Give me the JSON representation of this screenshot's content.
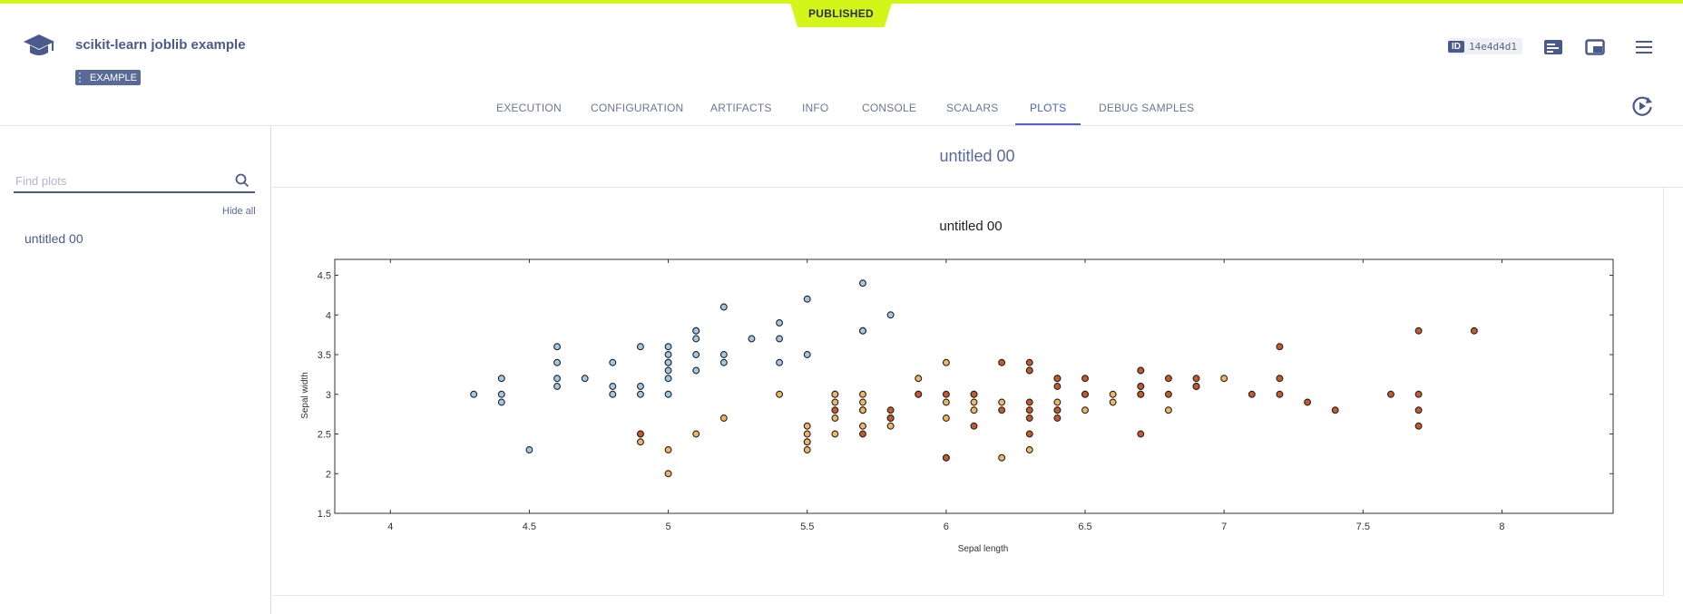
{
  "status_label": "PUBLISHED",
  "task": {
    "title": "scikit-learn joblib example",
    "badge": "EXAMPLE",
    "id_label": "ID",
    "id_value": "14e4d4d1"
  },
  "tabs": [
    {
      "label": "EXECUTION",
      "active": false
    },
    {
      "label": "CONFIGURATION",
      "active": false
    },
    {
      "label": "ARTIFACTS",
      "active": false
    },
    {
      "label": "INFO",
      "active": false
    },
    {
      "label": "CONSOLE",
      "active": false
    },
    {
      "label": "SCALARS",
      "active": false
    },
    {
      "label": "PLOTS",
      "active": true
    },
    {
      "label": "DEBUG SAMPLES",
      "active": false
    }
  ],
  "sidebar": {
    "search_placeholder": "Find plots",
    "hide_all_label": "Hide all",
    "plots": [
      "untitled 00"
    ]
  },
  "main": {
    "section_title": "untitled 00"
  },
  "colors": {
    "accent": "#d3f51a",
    "brand": "#4b5a8c",
    "active_tab": "#4b63c4",
    "class_0": "#9fc9e6",
    "class_1": "#f2b562",
    "class_2": "#c85a2a"
  },
  "icons": {
    "logo": "graduation-cap-icon",
    "details": "details-panel-icon",
    "split_view": "split-view-icon",
    "menu": "hamburger-menu-icon",
    "refresh": "refresh-play-icon",
    "search": "search-icon"
  },
  "chart_data": {
    "type": "scatter",
    "title": "untitled 00",
    "xlabel": "Sepal length",
    "ylabel": "Sepal width",
    "xlim": [
      3.8,
      8.4
    ],
    "ylim": [
      1.5,
      4.7
    ],
    "xticks": [
      4,
      4.5,
      5,
      5.5,
      6,
      6.5,
      7,
      7.5,
      8
    ],
    "yticks": [
      1.5,
      2,
      2.5,
      3,
      3.5,
      4,
      4.5
    ],
    "grid": false,
    "series": [
      {
        "color": "#9fc9e6",
        "x": [
          4.3,
          4.4,
          4.4,
          4.4,
          4.5,
          4.6,
          4.6,
          4.6,
          4.6,
          4.7,
          4.8,
          4.8,
          4.8,
          4.9,
          4.9,
          4.9,
          5.0,
          5.0,
          5.0,
          5.0,
          5.0,
          5.0,
          5.0,
          5.1,
          5.1,
          5.1,
          5.1,
          5.1,
          5.2,
          5.2,
          5.2,
          5.3,
          5.4,
          5.4,
          5.4,
          5.5,
          5.5,
          5.7,
          5.7,
          5.7,
          5.8
        ],
        "y": [
          3.0,
          3.2,
          3.0,
          2.9,
          2.3,
          3.6,
          3.4,
          3.2,
          3.1,
          3.2,
          3.4,
          3.1,
          3.0,
          3.6,
          3.1,
          3.0,
          3.6,
          3.5,
          3.4,
          3.3,
          3.2,
          3.0,
          3.4,
          3.8,
          3.7,
          3.5,
          3.3,
          3.8,
          4.1,
          3.5,
          3.4,
          3.7,
          3.9,
          3.7,
          3.4,
          4.2,
          3.5,
          4.4,
          3.8,
          3.8,
          4.0
        ]
      },
      {
        "color": "#f2b562",
        "x": [
          4.9,
          4.9,
          5.0,
          5.0,
          5.1,
          5.2,
          5.4,
          5.5,
          5.5,
          5.5,
          5.5,
          5.5,
          5.6,
          5.6,
          5.6,
          5.6,
          5.6,
          5.7,
          5.7,
          5.7,
          5.7,
          5.7,
          5.8,
          5.8,
          5.9,
          5.9,
          6.0,
          6.0,
          6.0,
          6.0,
          6.1,
          6.1,
          6.1,
          6.2,
          6.2,
          6.3,
          6.3,
          6.4,
          6.4,
          6.5,
          6.6,
          6.6,
          6.7,
          6.7,
          6.8,
          6.9,
          7.0
        ],
        "y": [
          2.4,
          2.5,
          2.3,
          2.0,
          2.5,
          2.7,
          3.0,
          2.6,
          2.5,
          2.4,
          2.4,
          2.3,
          3.0,
          2.9,
          2.7,
          2.5,
          3.0,
          3.0,
          2.9,
          2.8,
          2.6,
          2.8,
          2.7,
          2.6,
          3.2,
          3.0,
          3.4,
          2.9,
          2.7,
          2.2,
          3.0,
          2.9,
          2.8,
          2.9,
          2.2,
          3.3,
          2.3,
          3.2,
          2.9,
          2.8,
          3.0,
          2.9,
          3.1,
          3.0,
          2.8,
          3.1,
          3.2
        ]
      },
      {
        "color": "#c85a2a",
        "x": [
          4.9,
          5.6,
          5.7,
          5.8,
          5.8,
          5.8,
          5.9,
          6.0,
          6.0,
          6.1,
          6.1,
          6.2,
          6.2,
          6.3,
          6.3,
          6.3,
          6.3,
          6.3,
          6.3,
          6.4,
          6.4,
          6.4,
          6.4,
          6.4,
          6.5,
          6.5,
          6.5,
          6.7,
          6.7,
          6.7,
          6.7,
          6.7,
          6.8,
          6.8,
          6.9,
          6.9,
          6.9,
          7.1,
          7.2,
          7.2,
          7.2,
          7.3,
          7.4,
          7.6,
          7.7,
          7.7,
          7.7,
          7.7,
          7.9
        ],
        "y": [
          2.5,
          2.8,
          2.5,
          2.8,
          2.7,
          2.7,
          3.0,
          3.0,
          2.2,
          3.0,
          2.6,
          3.4,
          2.8,
          3.4,
          3.3,
          2.9,
          2.8,
          2.7,
          2.5,
          3.2,
          3.1,
          2.8,
          2.8,
          2.7,
          3.2,
          3.0,
          3.0,
          3.3,
          3.1,
          3.0,
          2.5,
          3.3,
          3.2,
          3.0,
          3.2,
          3.1,
          3.1,
          3.0,
          3.6,
          3.2,
          3.0,
          2.9,
          2.8,
          3.0,
          3.8,
          3.0,
          2.8,
          2.6,
          3.8
        ]
      }
    ]
  }
}
